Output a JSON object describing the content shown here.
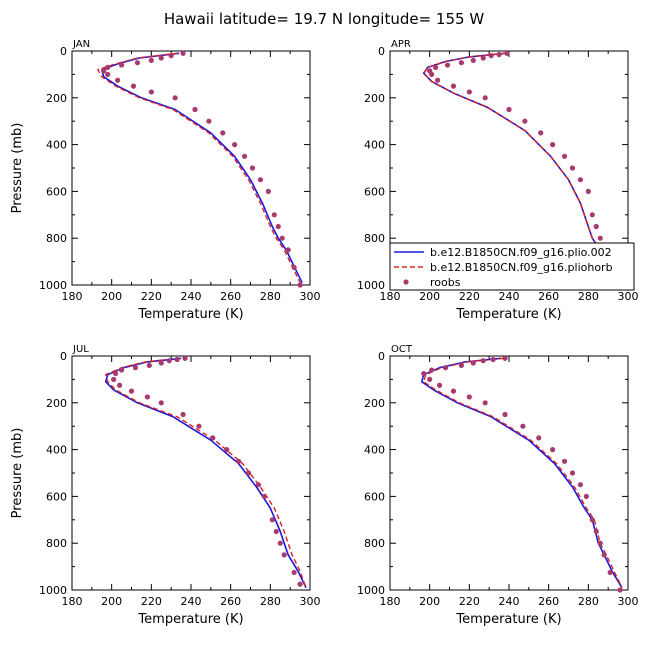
{
  "figure": {
    "title": "Hawaii  latitude= 19.7 N longitude= 155 W"
  },
  "colors": {
    "model1": "#1a1adc",
    "model2": "#e02020",
    "roobs": "#a83a6e"
  },
  "chart_data": [
    {
      "type": "line",
      "panel": "JAN",
      "xlabel": "Temperature (K)",
      "ylabel": "Pressure (mb)",
      "xlim": [
        180,
        300
      ],
      "ylim": [
        0,
        1000
      ],
      "y_inverted": true,
      "xticks": [
        180,
        200,
        220,
        240,
        260,
        280,
        300
      ],
      "yticks": [
        0,
        200,
        400,
        600,
        800,
        1000
      ],
      "series": [
        {
          "name": "b.e12.B1850CN.f09_g16.plio.002",
          "style": "solid",
          "x": [
            234,
            214,
            203,
            195,
            196,
            203,
            215,
            232,
            250,
            262,
            270,
            276,
            281,
            284,
            288,
            292,
            296
          ],
          "y": [
            10,
            30,
            55,
            80,
            110,
            150,
            200,
            250,
            350,
            450,
            550,
            650,
            750,
            800,
            850,
            920,
            990
          ]
        },
        {
          "name": "b.e12.B1850CN.f09_g16.pliohorb",
          "style": "dashed",
          "x": [
            233,
            213,
            202,
            193,
            195,
            202,
            214,
            231,
            249,
            261,
            269,
            275,
            280,
            283,
            287,
            291,
            295
          ],
          "y": [
            10,
            30,
            55,
            80,
            110,
            150,
            200,
            250,
            350,
            450,
            550,
            650,
            750,
            800,
            850,
            920,
            990
          ]
        },
        {
          "name": "roobs",
          "style": "markers",
          "x": [
            236,
            230,
            225,
            220,
            213,
            205,
            198,
            196,
            198,
            203,
            211,
            220,
            232,
            242,
            249,
            256,
            262,
            267,
            271,
            275,
            279,
            282,
            284,
            286,
            289,
            292,
            295
          ],
          "y": [
            10,
            20,
            30,
            40,
            50,
            60,
            70,
            85,
            100,
            125,
            150,
            175,
            200,
            250,
            300,
            350,
            400,
            450,
            500,
            550,
            600,
            700,
            750,
            800,
            850,
            925,
            1000
          ]
        }
      ]
    },
    {
      "type": "line",
      "panel": "APR",
      "xlabel": "Temperature (K)",
      "ylabel": "",
      "xlim": [
        180,
        300
      ],
      "ylim": [
        0,
        1000
      ],
      "y_inverted": true,
      "xticks": [
        180,
        200,
        220,
        240,
        260,
        280,
        300
      ],
      "yticks": [
        0,
        200,
        400,
        600,
        800,
        1000
      ],
      "legend_position": "bottom-right",
      "series": [
        {
          "name": "b.e12.B1850CN.f09_g16.plio.002",
          "style": "solid",
          "x": [
            238,
            220,
            208,
            199,
            197,
            201,
            212,
            229,
            248,
            261,
            270,
            276,
            280,
            282,
            286,
            291,
            296
          ],
          "y": [
            10,
            25,
            45,
            70,
            95,
            130,
            180,
            240,
            340,
            450,
            550,
            650,
            750,
            800,
            850,
            920,
            990
          ]
        },
        {
          "name": "b.e12.B1850CN.f09_g16.pliohorb",
          "style": "dashed",
          "x": [
            238,
            220,
            208,
            199,
            197,
            201,
            212,
            229,
            248,
            261,
            270,
            276,
            280,
            282,
            286,
            291,
            296
          ],
          "y": [
            10,
            25,
            45,
            70,
            95,
            130,
            180,
            240,
            340,
            450,
            550,
            650,
            750,
            800,
            850,
            920,
            990
          ]
        },
        {
          "name": "roobs",
          "style": "markers",
          "x": [
            239,
            235,
            231,
            227,
            222,
            216,
            209,
            203,
            200,
            201,
            204,
            212,
            220,
            228,
            240,
            248,
            256,
            262,
            268,
            272,
            276,
            280,
            282,
            284,
            286,
            289,
            292,
            295
          ],
          "y": [
            10,
            15,
            20,
            30,
            40,
            50,
            60,
            70,
            85,
            100,
            125,
            150,
            175,
            200,
            250,
            300,
            350,
            400,
            450,
            500,
            550,
            600,
            700,
            750,
            800,
            850,
            925,
            1000
          ]
        }
      ]
    },
    {
      "type": "line",
      "panel": "JUL",
      "xlabel": "Temperature (K)",
      "ylabel": "Pressure (mb)",
      "xlim": [
        180,
        300
      ],
      "ylim": [
        0,
        1000
      ],
      "y_inverted": true,
      "xticks": [
        180,
        200,
        220,
        240,
        260,
        280,
        300
      ],
      "yticks": [
        0,
        200,
        400,
        600,
        800,
        1000
      ],
      "series": [
        {
          "name": "b.e12.B1850CN.f09_g16.plio.002",
          "style": "solid",
          "x": [
            235,
            218,
            206,
            198,
            197,
            201,
            213,
            231,
            250,
            264,
            273,
            280,
            285,
            287,
            289,
            294,
            298
          ],
          "y": [
            10,
            25,
            50,
            80,
            110,
            145,
            200,
            260,
            360,
            460,
            560,
            650,
            750,
            800,
            850,
            920,
            990
          ]
        },
        {
          "name": "b.e12.B1850CN.f09_g16.pliohorb",
          "style": "dashed",
          "x": [
            234,
            217,
            205,
            197,
            198,
            202,
            214,
            233,
            252,
            266,
            275,
            282,
            287,
            289,
            291,
            295,
            298
          ],
          "y": [
            10,
            25,
            50,
            80,
            110,
            145,
            200,
            260,
            360,
            460,
            560,
            650,
            750,
            800,
            850,
            920,
            990
          ]
        },
        {
          "name": "roobs",
          "style": "markers",
          "x": [
            237,
            233,
            229,
            225,
            219,
            212,
            205,
            202,
            201,
            204,
            210,
            218,
            225,
            236,
            244,
            251,
            258,
            264,
            269,
            274,
            277,
            281,
            283,
            285,
            287,
            292,
            295
          ],
          "y": [
            10,
            15,
            20,
            30,
            40,
            50,
            60,
            75,
            100,
            125,
            150,
            175,
            200,
            250,
            300,
            350,
            400,
            450,
            500,
            550,
            600,
            700,
            750,
            800,
            850,
            925,
            975
          ]
        }
      ]
    },
    {
      "type": "line",
      "panel": "OCT",
      "xlabel": "Temperature (K)",
      "ylabel": "",
      "xlim": [
        180,
        300
      ],
      "ylim": [
        0,
        1000
      ],
      "y_inverted": true,
      "xticks": [
        180,
        200,
        220,
        240,
        260,
        280,
        300
      ],
      "yticks": [
        0,
        200,
        400,
        600,
        800,
        1000
      ],
      "series": [
        {
          "name": "b.e12.B1850CN.f09_g16.plio.002",
          "style": "solid",
          "x": [
            236,
            218,
            205,
            197,
            196,
            202,
            214,
            231,
            250,
            263,
            272,
            278,
            282,
            285,
            288,
            292,
            297
          ],
          "y": [
            10,
            25,
            50,
            80,
            110,
            145,
            200,
            260,
            360,
            460,
            560,
            650,
            700,
            800,
            850,
            920,
            990
          ]
        },
        {
          "name": "b.e12.B1850CN.f09_g16.pliohorb",
          "style": "dashed",
          "x": [
            237,
            219,
            206,
            198,
            197,
            203,
            215,
            232,
            251,
            264,
            273,
            279,
            283,
            286,
            289,
            293,
            297
          ],
          "y": [
            10,
            25,
            50,
            80,
            110,
            145,
            200,
            260,
            360,
            460,
            560,
            650,
            700,
            800,
            850,
            920,
            990
          ]
        },
        {
          "name": "roobs",
          "style": "markers",
          "x": [
            238,
            232,
            227,
            222,
            216,
            208,
            201,
            197,
            200,
            205,
            212,
            220,
            228,
            238,
            247,
            255,
            262,
            268,
            272,
            276,
            279,
            282,
            284,
            286,
            288,
            291,
            296
          ],
          "y": [
            10,
            15,
            20,
            30,
            40,
            50,
            60,
            75,
            100,
            125,
            150,
            175,
            200,
            250,
            300,
            350,
            400,
            450,
            500,
            550,
            600,
            700,
            750,
            800,
            850,
            925,
            1000
          ]
        }
      ]
    }
  ]
}
